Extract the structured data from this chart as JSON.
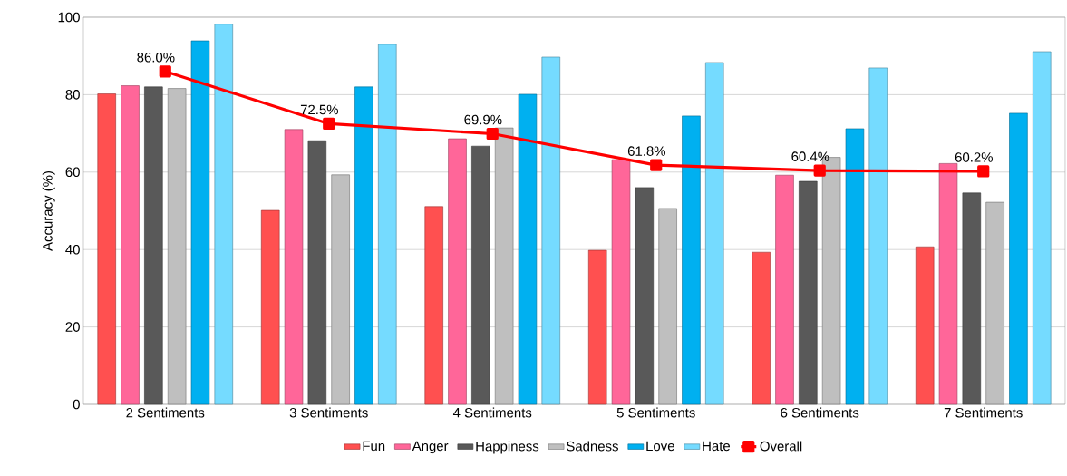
{
  "chart_data": {
    "type": "bar",
    "ylabel": "Accuracy (%)",
    "categories": [
      "2 Sentiments",
      "3 Sentiments",
      "4 Sentiments",
      "5 Sentiments",
      "6 Sentiments",
      "7 Sentiments"
    ],
    "series": [
      {
        "name": "Fun",
        "color": "#ff5050",
        "values": [
          80.2,
          50.1,
          51.1,
          39.8,
          39.3,
          40.7
        ]
      },
      {
        "name": "Anger",
        "color": "#ff6699",
        "values": [
          82.3,
          71.0,
          68.6,
          63.2,
          59.2,
          62.2
        ]
      },
      {
        "name": "Happiness",
        "color": "#595959",
        "values": [
          82.0,
          68.1,
          66.7,
          56.0,
          57.6,
          54.6
        ]
      },
      {
        "name": "Sadness",
        "color": "#bfbfbf",
        "values": [
          81.6,
          59.3,
          71.4,
          50.6,
          63.8,
          52.2
        ]
      },
      {
        "name": "Love",
        "color": "#00b0f0",
        "values": [
          93.9,
          82.0,
          80.1,
          74.5,
          71.2,
          75.2
        ]
      },
      {
        "name": "Hate",
        "color": "#75dbff",
        "values": [
          98.2,
          93.0,
          89.7,
          88.3,
          86.9,
          91.1
        ]
      },
      {
        "name": "Overall",
        "type": "line",
        "color": "#ff0000",
        "marker": "square",
        "line_style": "solid",
        "values": [
          86.0,
          72.5,
          69.9,
          61.8,
          60.4,
          60.2
        ],
        "value_labels": [
          "86.0%",
          "72.5%",
          "69.9%",
          "61.8%",
          "60.4%",
          "60.2%"
        ]
      }
    ],
    "ylim": [
      0,
      100
    ],
    "yticks": [
      0,
      20,
      40,
      60,
      80,
      100
    ],
    "grid": "y",
    "legend": "bottom"
  }
}
